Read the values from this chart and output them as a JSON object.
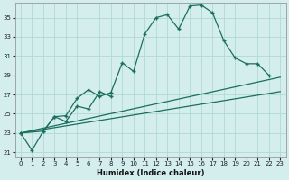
{
  "xlabel": "Humidex (Indice chaleur)",
  "bg_color": "#d4eeee",
  "grid_color": "#b0d8d8",
  "line_color": "#1a6e5e",
  "xlim": [
    -0.5,
    23.5
  ],
  "ylim": [
    20.5,
    36.5
  ],
  "xticks": [
    0,
    1,
    2,
    3,
    4,
    5,
    6,
    7,
    8,
    9,
    10,
    11,
    12,
    13,
    14,
    15,
    16,
    17,
    18,
    19,
    20,
    21,
    22,
    23
  ],
  "yticks": [
    21,
    23,
    25,
    27,
    29,
    31,
    33,
    35
  ],
  "line1_x": [
    0,
    1,
    2,
    3,
    4,
    5,
    6,
    7,
    8,
    9,
    10,
    11,
    12,
    13,
    14,
    15,
    16,
    17,
    18,
    19,
    20,
    21,
    22
  ],
  "line1_y": [
    23.0,
    21.2,
    23.2,
    24.7,
    24.8,
    26.6,
    27.5,
    26.8,
    27.2,
    30.3,
    29.4,
    33.3,
    35.0,
    35.3,
    33.8,
    36.2,
    36.3,
    35.5,
    32.6,
    30.8,
    30.2,
    30.2,
    29.0
  ],
  "line2_x": [
    0,
    2,
    3,
    4,
    5,
    6,
    7,
    8
  ],
  "line2_y": [
    23.0,
    23.2,
    24.7,
    24.2,
    25.8,
    25.5,
    27.3,
    26.8
  ],
  "line3_x": [
    0,
    23
  ],
  "line3_y": [
    23.0,
    28.8
  ],
  "line4_x": [
    0,
    23
  ],
  "line4_y": [
    23.0,
    27.3
  ]
}
